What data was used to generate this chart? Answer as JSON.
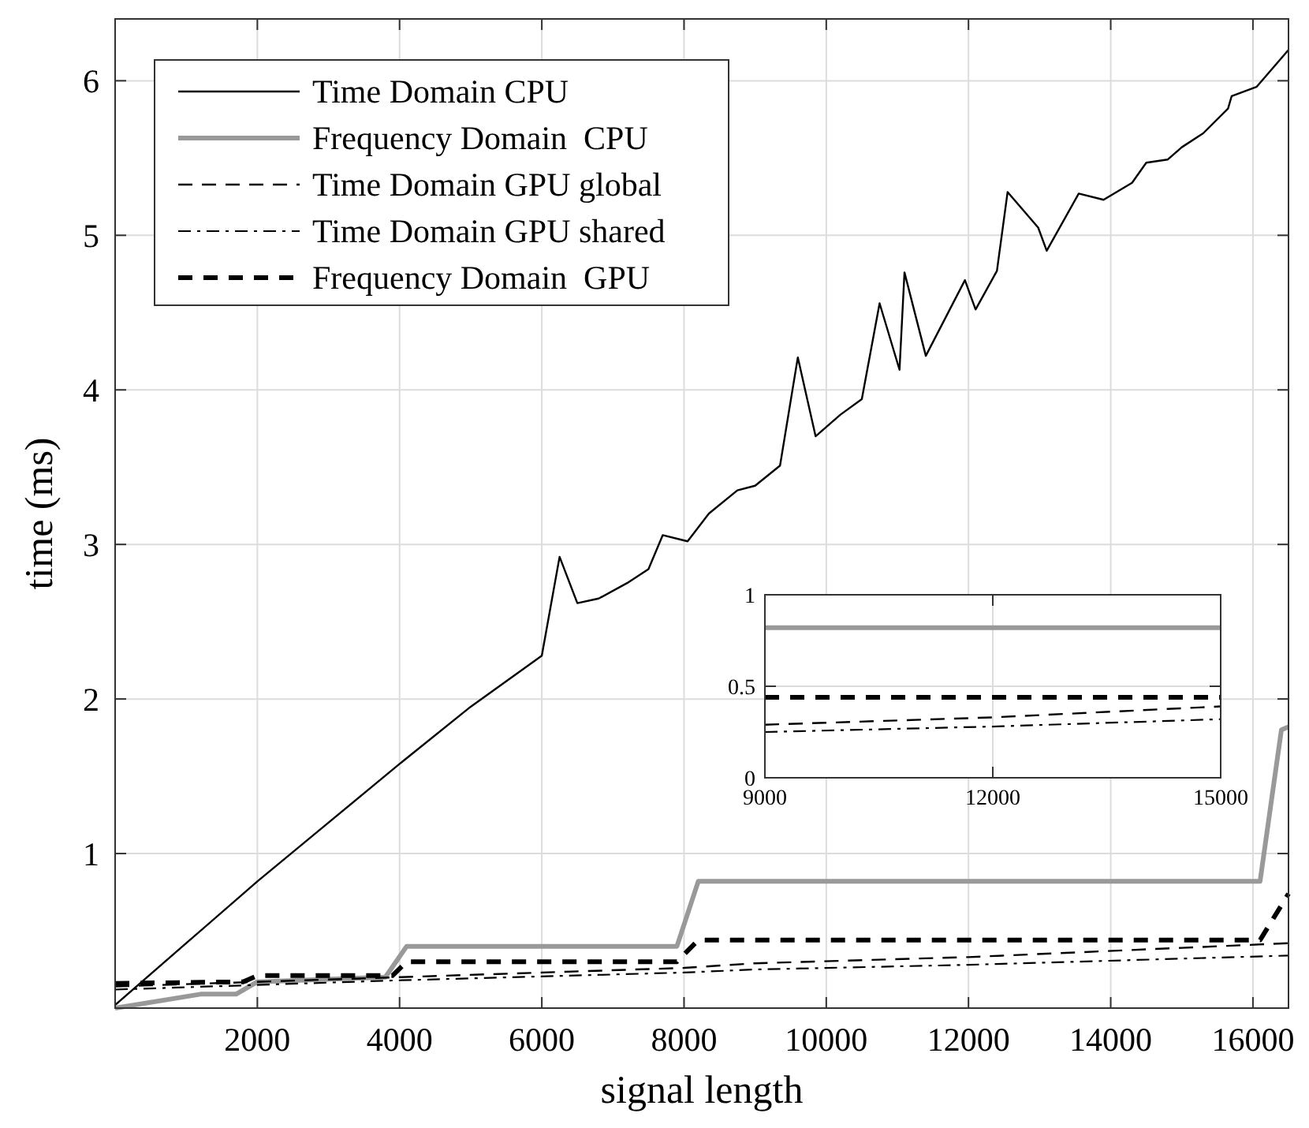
{
  "chart_data": [
    {
      "type": "line",
      "xlabel": "signal length",
      "ylabel": "time (ms)",
      "xlim": [
        0,
        16500
      ],
      "ylim": [
        0,
        6.4
      ],
      "xticks": [
        2000,
        4000,
        6000,
        8000,
        10000,
        12000,
        14000,
        16000
      ],
      "yticks": [
        1,
        2,
        3,
        4,
        5,
        6
      ],
      "grid": true,
      "legend": "top left",
      "series": [
        {
          "name": "Time Domain CPU",
          "color": "#000000",
          "line_style": "solid",
          "x": [
            0,
            1000,
            2000,
            3000,
            4000,
            5000,
            6000,
            6250,
            6500,
            6800,
            7200,
            7500,
            7700,
            8050,
            8350,
            8750,
            9000,
            9350,
            9600,
            9850,
            10200,
            10500,
            10750,
            11030,
            11100,
            11400,
            11950,
            12100,
            12400,
            12550,
            12980,
            13100,
            13550,
            13900,
            14300,
            14500,
            14800,
            15000,
            15300,
            15650,
            15700,
            16050,
            16500
          ],
          "values": [
            0.02,
            0.42,
            0.82,
            1.2,
            1.58,
            1.95,
            2.28,
            2.92,
            2.62,
            2.65,
            2.75,
            2.84,
            3.06,
            3.02,
            3.2,
            3.35,
            3.38,
            3.51,
            4.21,
            3.7,
            3.84,
            3.94,
            4.56,
            4.13,
            4.76,
            4.22,
            4.71,
            4.52,
            4.77,
            5.28,
            5.05,
            4.9,
            5.27,
            5.23,
            5.34,
            5.47,
            5.49,
            5.57,
            5.66,
            5.82,
            5.9,
            5.96,
            6.2
          ]
        },
        {
          "name": "Frequency Domain  CPU",
          "color": "#999999",
          "line_style": "solid",
          "x": [
            0,
            1200,
            1700,
            2000,
            3800,
            4100,
            7900,
            8200,
            10000,
            12000,
            14000,
            16100,
            16400,
            16500
          ],
          "values": [
            0,
            0.09,
            0.09,
            0.17,
            0.2,
            0.4,
            0.4,
            0.82,
            0.82,
            0.82,
            0.82,
            0.82,
            1.8,
            1.82
          ]
        },
        {
          "name": "Time Domain GPU global",
          "color": "#000000",
          "line_style": "dashed",
          "x": [
            0,
            4000,
            8000,
            9000,
            12000,
            15000,
            16500
          ],
          "values": [
            0.14,
            0.2,
            0.26,
            0.29,
            0.33,
            0.39,
            0.42
          ]
        },
        {
          "name": "Time Domain GPU shared",
          "color": "#000000",
          "line_style": "dashdot",
          "x": [
            0,
            4000,
            8000,
            9000,
            12000,
            15000,
            16500
          ],
          "values": [
            0.12,
            0.18,
            0.23,
            0.25,
            0.28,
            0.32,
            0.34
          ]
        },
        {
          "name": "Frequency Domain  GPU",
          "color": "#000000",
          "line_style": "dashed-thick",
          "x": [
            0,
            1800,
            2000,
            3900,
            4100,
            7900,
            8200,
            16100,
            16500
          ],
          "values": [
            0.16,
            0.17,
            0.21,
            0.21,
            0.3,
            0.3,
            0.44,
            0.44,
            0.74
          ]
        }
      ]
    },
    {
      "type": "line",
      "xlim": [
        9000,
        15000
      ],
      "ylim": [
        0,
        1
      ],
      "xticks": [
        9000,
        12000,
        15000
      ],
      "yticks": [
        0,
        0.5,
        1
      ],
      "grid": true,
      "series": [
        {
          "color": "#999999",
          "line_style": "solid",
          "x": [
            9000,
            10000,
            11000,
            12000,
            13000,
            14000,
            15000
          ],
          "values": [
            0.82,
            0.82,
            0.82,
            0.82,
            0.82,
            0.82,
            0.82
          ]
        },
        {
          "color": "#000000",
          "line_style": "dashed-thick",
          "x": [
            9000,
            12000,
            15000
          ],
          "values": [
            0.44,
            0.44,
            0.44
          ]
        },
        {
          "color": "#000000",
          "line_style": "dashed",
          "x": [
            9000,
            12000,
            15000
          ],
          "values": [
            0.29,
            0.33,
            0.39
          ]
        },
        {
          "color": "#000000",
          "line_style": "dashdot",
          "x": [
            9000,
            12000,
            15000
          ],
          "values": [
            0.25,
            0.28,
            0.32
          ]
        }
      ]
    }
  ]
}
